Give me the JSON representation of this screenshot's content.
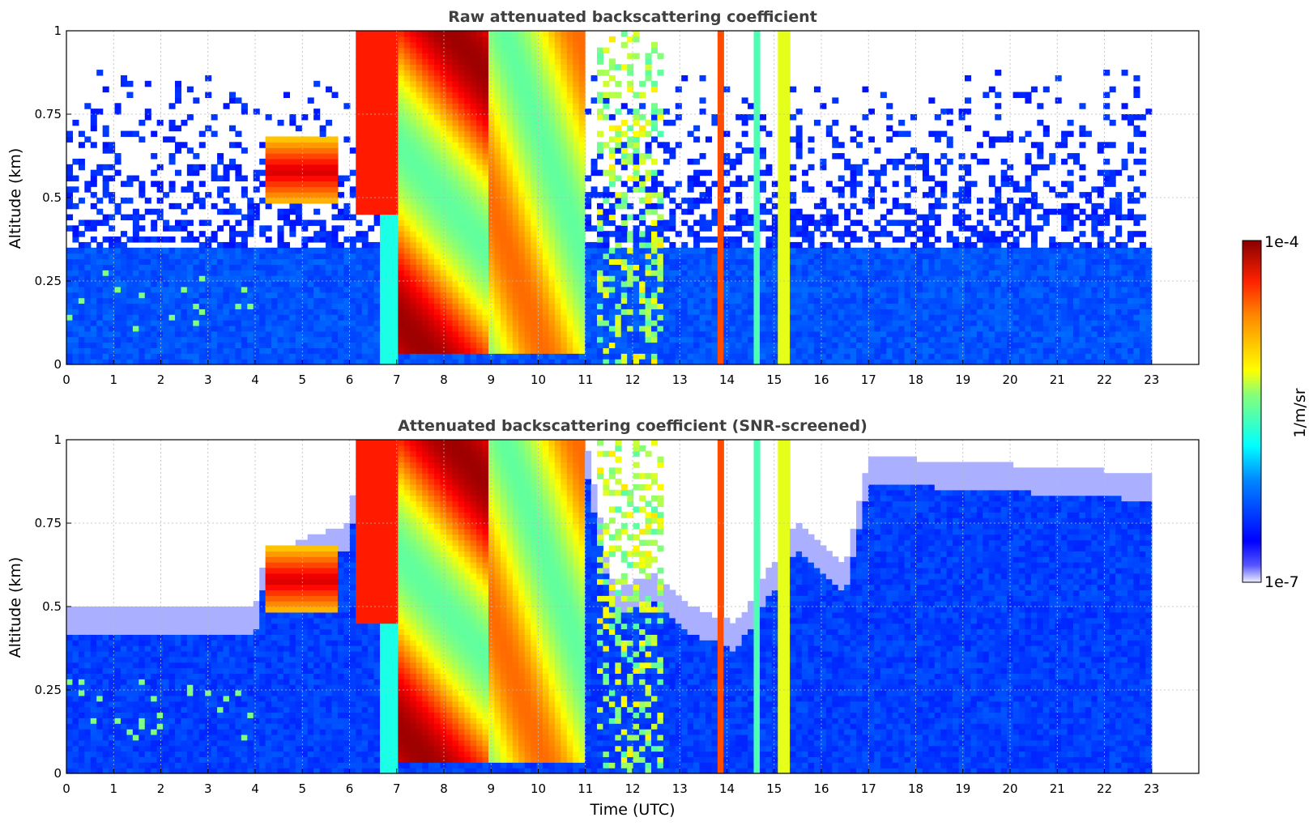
{
  "chart_data": [
    {
      "type": "heatmap",
      "title": "Raw attenuated backscattering coefficient",
      "xlabel": "",
      "ylabel": "Altitude (km)",
      "xlim": [
        0,
        24
      ],
      "ylim": [
        0,
        1
      ],
      "xticks": [
        "0",
        "1",
        "2",
        "3",
        "4",
        "5",
        "6",
        "7",
        "8",
        "9",
        "10",
        "11",
        "12",
        "13",
        "14",
        "15",
        "16",
        "17",
        "18",
        "19",
        "20",
        "21",
        "22",
        "23"
      ],
      "yticks": [
        "0",
        "0.25",
        "0.5",
        "0.75",
        "1"
      ],
      "data_end_time": 23,
      "grid": true,
      "features": [
        {
          "t0": 4.2,
          "t1": 5.8,
          "z0": 0.5,
          "z1": 0.65,
          "level": "high"
        },
        {
          "t0": 6.1,
          "t1": 7.0,
          "z0": 0.5,
          "z1": 1.0,
          "level": "high"
        },
        {
          "t0": 7.0,
          "t1": 9.0,
          "z0": 0.03,
          "z1": 1.0,
          "level": "very high"
        },
        {
          "t0": 9.0,
          "t1": 11.0,
          "z0": 0.03,
          "z1": 1.0,
          "level": "medium-high"
        },
        {
          "t0": 11.2,
          "t1": 12.6,
          "z0": 0.0,
          "z1": 1.0,
          "level": "medium (intermittent)"
        },
        {
          "t0": 13.8,
          "t1": 13.95,
          "z0": 0.0,
          "z1": 1.0,
          "level": "high"
        },
        {
          "t0": 15.05,
          "t1": 15.3,
          "z0": 0.0,
          "z1": 1.0,
          "level": "medium-high"
        }
      ]
    },
    {
      "type": "heatmap",
      "title": "Attenuated backscattering coefficient (SNR-screened)",
      "xlabel": "Time (UTC)",
      "ylabel": "Altitude (km)",
      "xlim": [
        0,
        24
      ],
      "ylim": [
        0,
        1
      ],
      "xticks": [
        "0",
        "1",
        "2",
        "3",
        "4",
        "5",
        "6",
        "7",
        "8",
        "9",
        "10",
        "11",
        "12",
        "13",
        "14",
        "15",
        "16",
        "17",
        "18",
        "19",
        "20",
        "21",
        "22",
        "23"
      ],
      "yticks": [
        "0",
        "0.25",
        "0.5",
        "0.75",
        "1"
      ],
      "data_end_time": 23,
      "grid": true,
      "screened_top_km": [
        [
          0,
          0.5
        ],
        [
          4,
          0.5
        ],
        [
          4.2,
          0.66
        ],
        [
          6,
          0.75
        ],
        [
          6.2,
          1.0
        ],
        [
          11,
          1.0
        ],
        [
          11.6,
          0.55
        ],
        [
          12.5,
          0.6
        ],
        [
          13.2,
          0.5
        ],
        [
          14.2,
          0.45
        ],
        [
          15.5,
          0.75
        ],
        [
          16.5,
          0.62
        ],
        [
          17,
          0.95
        ],
        [
          23,
          0.9
        ]
      ]
    }
  ],
  "colorbar": {
    "label": "1/m/sr",
    "max_label": "1e-4",
    "min_label": "1e-7",
    "colormap": "jet",
    "scale": "log",
    "range": [
      1e-07,
      0.0001
    ]
  }
}
